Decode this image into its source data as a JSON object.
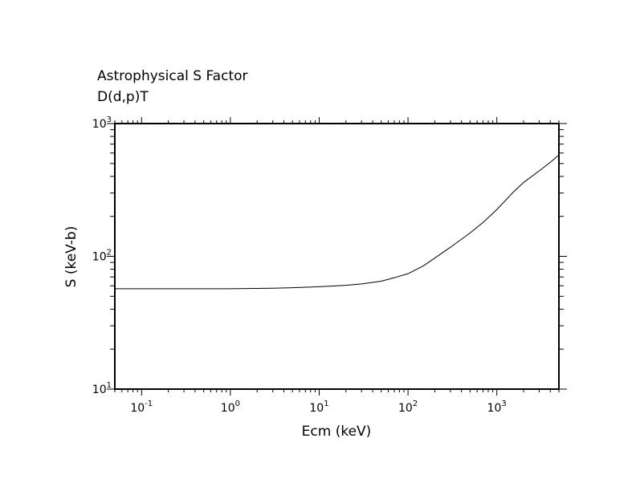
{
  "chart_data": {
    "type": "line",
    "title": "Astrophysical S Factor",
    "subtitle": "D(d,p)T",
    "xlabel": "Ecm (keV)",
    "ylabel": "S (keV-b)",
    "xscale": "log",
    "yscale": "log",
    "xlim": [
      0.05,
      5000
    ],
    "ylim": [
      10,
      1000
    ],
    "grid": false,
    "x_ticks": [
      {
        "base": "10",
        "exp": "-1",
        "value": 0.1
      },
      {
        "base": "10",
        "exp": "0",
        "value": 1
      },
      {
        "base": "10",
        "exp": "1",
        "value": 10
      },
      {
        "base": "10",
        "exp": "2",
        "value": 100
      },
      {
        "base": "10",
        "exp": "3",
        "value": 1000
      }
    ],
    "y_ticks": [
      {
        "base": "10",
        "exp": "1",
        "value": 10
      },
      {
        "base": "10",
        "exp": "2",
        "value": 100
      },
      {
        "base": "10",
        "exp": "3",
        "value": 1000
      }
    ],
    "series": [
      {
        "color": "#000000",
        "x": [
          0.05,
          0.1,
          0.3,
          1,
          3,
          5,
          10,
          20,
          30,
          50,
          70,
          100,
          150,
          200,
          300,
          500,
          700,
          1000,
          1500,
          2000,
          3000,
          4000,
          5000
        ],
        "y": [
          57,
          57,
          57,
          57,
          57.5,
          58,
          59,
          60.5,
          62,
          65,
          69,
          74,
          85,
          97,
          117,
          150,
          180,
          225,
          300,
          360,
          440,
          510,
          580
        ]
      }
    ]
  }
}
